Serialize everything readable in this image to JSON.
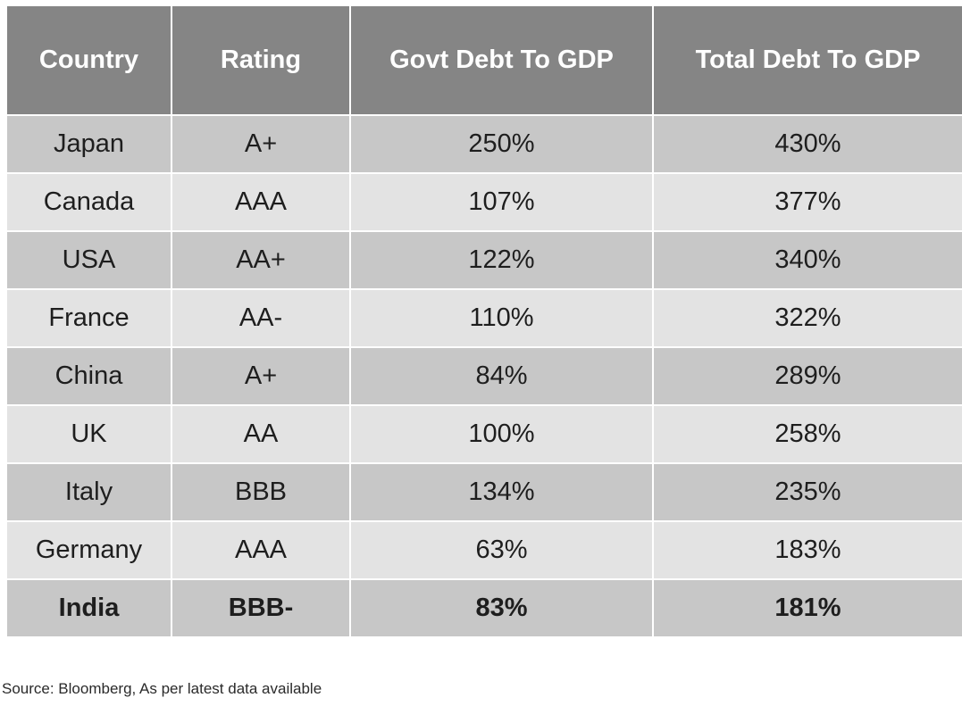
{
  "chart_data": {
    "type": "table",
    "columns": [
      "Country",
      "Rating",
      "Govt Debt To GDP",
      "Total Debt To GDP"
    ],
    "rows": [
      {
        "country": "Japan",
        "rating": "A+",
        "govt_debt_to_gdp": "250%",
        "total_debt_to_gdp": "430%"
      },
      {
        "country": "Canada",
        "rating": "AAA",
        "govt_debt_to_gdp": "107%",
        "total_debt_to_gdp": "377%"
      },
      {
        "country": "USA",
        "rating": "AA+",
        "govt_debt_to_gdp": "122%",
        "total_debt_to_gdp": "340%"
      },
      {
        "country": "France",
        "rating": "AA-",
        "govt_debt_to_gdp": "110%",
        "total_debt_to_gdp": "322%"
      },
      {
        "country": "China",
        "rating": "A+",
        "govt_debt_to_gdp": "84%",
        "total_debt_to_gdp": "289%"
      },
      {
        "country": "UK",
        "rating": "AA",
        "govt_debt_to_gdp": "100%",
        "total_debt_to_gdp": "258%"
      },
      {
        "country": "Italy",
        "rating": "BBB",
        "govt_debt_to_gdp": "134%",
        "total_debt_to_gdp": "235%"
      },
      {
        "country": "Germany",
        "rating": "AAA",
        "govt_debt_to_gdp": "63%",
        "total_debt_to_gdp": "183%"
      },
      {
        "country": "India",
        "rating": "BBB-",
        "govt_debt_to_gdp": "83%",
        "total_debt_to_gdp": "181%"
      }
    ],
    "highlighted_row": "India"
  },
  "source_note": "Source: Bloomberg, As per latest data available",
  "colors": {
    "header_bg": "#858585",
    "row_dark": "#c7c7c7",
    "row_light": "#e3e3e3"
  }
}
